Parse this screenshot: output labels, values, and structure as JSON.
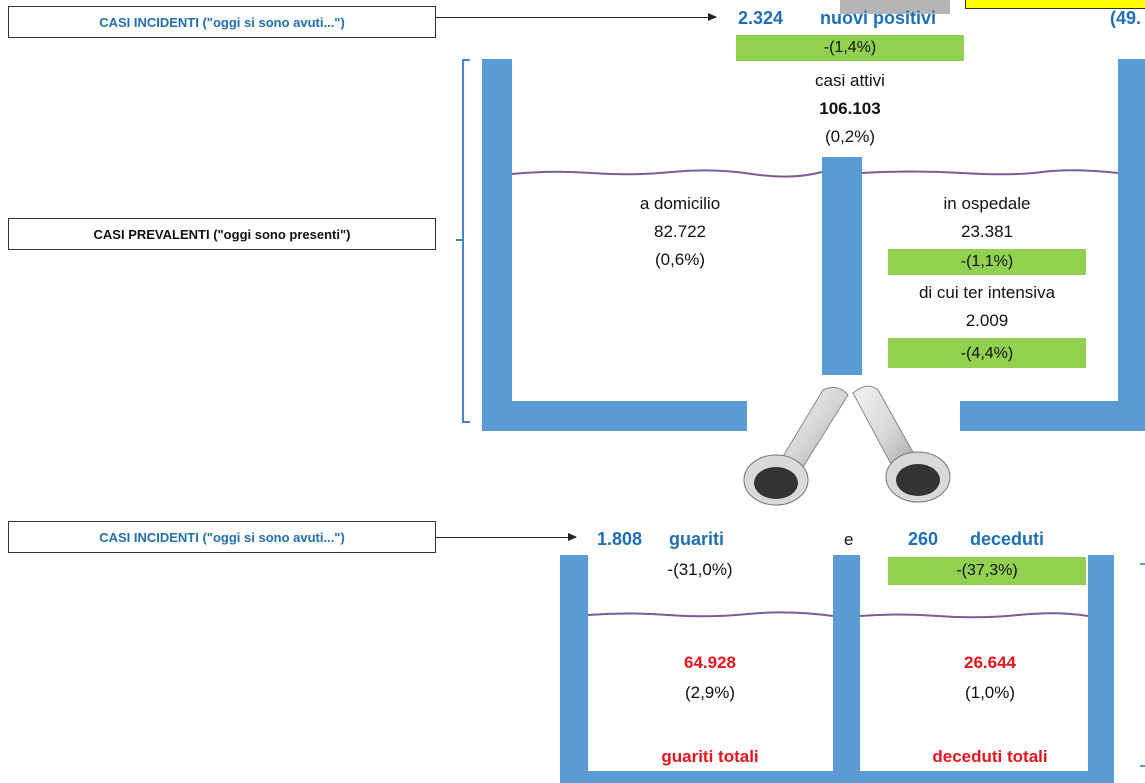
{
  "labels": {
    "incident_top": "CASI INCIDENTI (\"oggi si sono avuti...\")",
    "prevalent": "CASI PREVALENTI (\"oggi sono presenti\")",
    "incident_bottom": "CASI INCIDENTI (\"oggi si sono avuti...\")"
  },
  "top": {
    "new_positive_value": "2.324",
    "new_positive_label": "nuovi positivi",
    "new_positive_change": "-(1,4%)",
    "partial_right": "(49."
  },
  "active": {
    "label": "casi attivi",
    "value": "106.103",
    "change": "(0,2%)"
  },
  "home": {
    "label": "a domicilio",
    "value": "82.722",
    "change": "(0,6%)"
  },
  "hospital": {
    "label": "in ospedale",
    "value": "23.381",
    "change": "-(1,1%)",
    "icu_label": "di cui ter intensiva",
    "icu_value": "2.009",
    "icu_change": "-(4,4%)"
  },
  "outflow": {
    "recovered_value": "1.808",
    "recovered_label": "guariti",
    "connector": "e",
    "deaths_value": "260",
    "deaths_label": "deceduti",
    "recovered_change": "-(31,0%)",
    "deaths_change": "-(37,3%)"
  },
  "totals": {
    "recovered_total": "64.928",
    "recovered_total_change": "(2,9%)",
    "recovered_total_label": "guariti totali",
    "deaths_total": "26.644",
    "deaths_total_change": "(1,0%)",
    "deaths_total_label": "deceduti totali"
  },
  "colors": {
    "wall": "#5b9bd5",
    "highlight": "#92d050",
    "blue_text": "#1f6fb5",
    "red_text": "#e8141b"
  }
}
